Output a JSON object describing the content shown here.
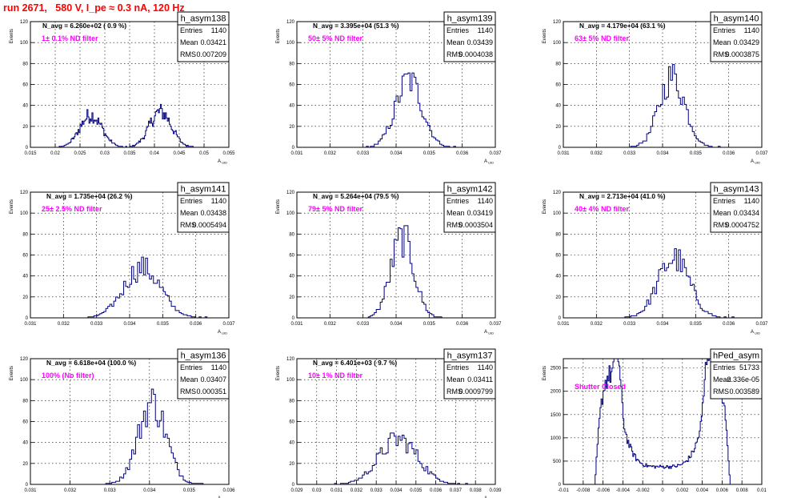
{
  "run_title": "run 2671,   580 V, I_pe ≈ 0.3 nA, 120 Hz",
  "colors": {
    "title": "#ff0000",
    "annotation": "#ff00ff",
    "histogram": "#00007f",
    "grid": "#000000"
  },
  "chart_data": [
    {
      "type": "histogram",
      "title": "h_asym138",
      "stats": {
        "entries_label": "Entries",
        "entries": "1140",
        "mean_label": "Mean",
        "mean": "0.03421",
        "rms_label": "RMS",
        "rms": "0.007209"
      },
      "navg_text": "N_avg = 6.260e+02 ( 0.9 %)",
      "filter_text": "1± 0.1% ND filter",
      "ylabel": "Events",
      "xlabel": "A_UID",
      "xlim": [
        0.015,
        0.055
      ],
      "ylim": [
        0,
        120
      ],
      "xticks": [
        "0.015",
        "0.02",
        "0.025",
        "0.03",
        "0.035",
        "0.04",
        "0.045",
        "0.05",
        "0.055"
      ],
      "yticks": [
        "0",
        "20",
        "40",
        "60",
        "80",
        "100",
        "120"
      ],
      "peaks": [
        {
          "c": 0.0272,
          "s": 0.0022,
          "a": 31
        },
        {
          "c": 0.0412,
          "s": 0.0022,
          "a": 34
        }
      ],
      "nbins": 200
    },
    {
      "type": "histogram",
      "title": "h_asym139",
      "stats": {
        "entries_label": "Entries",
        "entries": "1140",
        "mean_label": "Mean",
        "mean": "0.03439",
        "rms_label": "RMS",
        "rms": "0.0004038"
      },
      "navg_text": "N_avg = 3.395e+04 (51.3 %)",
      "filter_text": "50± 5% ND filter",
      "ylabel": "Events",
      "xlabel": "A_UID",
      "xlim": [
        0.031,
        0.037
      ],
      "ylim": [
        0,
        120
      ],
      "xticks": [
        "0.031",
        "0.032",
        "0.033",
        "0.034",
        "0.035",
        "0.036",
        "0.037"
      ],
      "yticks": [
        "0",
        "20",
        "40",
        "60",
        "80",
        "100",
        "120"
      ],
      "peaks": [
        {
          "c": 0.03439,
          "s": 0.0004,
          "a": 64
        }
      ],
      "nbins": 100
    },
    {
      "type": "histogram",
      "title": "h_asym140",
      "stats": {
        "entries_label": "Entries",
        "entries": "1140",
        "mean_label": "Mean",
        "mean": "0.03429",
        "rms_label": "RMS",
        "rms": "0.0003875"
      },
      "navg_text": "N_avg = 4.179e+04 (63.1 %)",
      "filter_text": "63± 5% ND filter",
      "ylabel": "Events",
      "xlabel": "A_UID",
      "xlim": [
        0.031,
        0.037
      ],
      "ylim": [
        0,
        120
      ],
      "xticks": [
        "0.031",
        "0.032",
        "0.033",
        "0.034",
        "0.035",
        "0.036",
        "0.037"
      ],
      "yticks": [
        "0",
        "20",
        "40",
        "60",
        "80",
        "100",
        "120"
      ],
      "peaks": [
        {
          "c": 0.03429,
          "s": 0.00039,
          "a": 67
        }
      ],
      "nbins": 100
    },
    {
      "type": "histogram",
      "title": "h_asym141",
      "stats": {
        "entries_label": "Entries",
        "entries": "1140",
        "mean_label": "Mean",
        "mean": "0.03438",
        "rms_label": "RMS",
        "rms": "0.0005494"
      },
      "navg_text": "N_avg = 1.735e+04 (26.2 %)",
      "filter_text": "25± 2.5% ND filter",
      "ylabel": "Events",
      "xlabel": "A_UID",
      "xlim": [
        0.031,
        0.037
      ],
      "ylim": [
        0,
        120
      ],
      "xticks": [
        "0.031",
        "0.032",
        "0.033",
        "0.034",
        "0.035",
        "0.036",
        "0.037"
      ],
      "yticks": [
        "0",
        "20",
        "40",
        "60",
        "80",
        "100",
        "120"
      ],
      "peaks": [
        {
          "c": 0.03438,
          "s": 0.00055,
          "a": 48
        }
      ],
      "nbins": 100
    },
    {
      "type": "histogram",
      "title": "h_asym142",
      "stats": {
        "entries_label": "Entries",
        "entries": "1140",
        "mean_label": "Mean",
        "mean": "0.03419",
        "rms_label": "RMS",
        "rms": "0.0003504"
      },
      "navg_text": "N_avg = 5.264e+04 (79.5 %)",
      "filter_text": "79± 5% ND filter",
      "ylabel": "Events",
      "xlabel": "A_UID",
      "xlim": [
        0.031,
        0.037
      ],
      "ylim": [
        0,
        120
      ],
      "xticks": [
        "0.031",
        "0.032",
        "0.033",
        "0.034",
        "0.035",
        "0.036",
        "0.037"
      ],
      "yticks": [
        "0",
        "20",
        "40",
        "60",
        "80",
        "100",
        "120"
      ],
      "peaks": [
        {
          "c": 0.03419,
          "s": 0.00035,
          "a": 76
        }
      ],
      "nbins": 100
    },
    {
      "type": "histogram",
      "title": "h_asym143",
      "stats": {
        "entries_label": "Entries",
        "entries": "1140",
        "mean_label": "Mean",
        "mean": "0.03434",
        "rms_label": "RMS",
        "rms": "0.0004752"
      },
      "navg_text": "N_avg = 2.713e+04 (41.0 %)",
      "filter_text": "40± 4% ND filter",
      "ylabel": "Events",
      "xlabel": "A_UID",
      "xlim": [
        0.031,
        0.037
      ],
      "ylim": [
        0,
        120
      ],
      "xticks": [
        "0.031",
        "0.032",
        "0.033",
        "0.034",
        "0.035",
        "0.036",
        "0.037"
      ],
      "yticks": [
        "0",
        "20",
        "40",
        "60",
        "80",
        "100",
        "120"
      ],
      "peaks": [
        {
          "c": 0.03434,
          "s": 0.00047,
          "a": 57
        }
      ],
      "nbins": 100
    },
    {
      "type": "histogram",
      "title": "h_asym136",
      "stats": {
        "entries_label": "Entries",
        "entries": "1140",
        "mean_label": "Mean",
        "mean": "0.03407",
        "rms_label": "RMS",
        "rms": "0.000351"
      },
      "navg_text": "N_avg = 6.618e+04 (100.0 %)",
      "filter_text": "100% (No filter)",
      "ylabel": "Events",
      "xlabel": "A_UID",
      "xlim": [
        0.031,
        0.036
      ],
      "ylim": [
        0,
        120
      ],
      "xticks": [
        "0.031",
        "0.032",
        "0.033",
        "0.034",
        "0.035",
        "0.036"
      ],
      "yticks": [
        "0",
        "20",
        "40",
        "60",
        "80",
        "100",
        "120"
      ],
      "peaks": [
        {
          "c": 0.03407,
          "s": 0.00035,
          "a": 78
        }
      ],
      "nbins": 100
    },
    {
      "type": "histogram",
      "title": "h_asym137",
      "stats": {
        "entries_label": "Entries",
        "entries": "1140",
        "mean_label": "Mean",
        "mean": "0.03411",
        "rms_label": "RMS",
        "rms": "0.0009799"
      },
      "navg_text": "N_avg = 6.401e+03 ( 9.7 %)",
      "filter_text": "10± 1% ND filter",
      "ylabel": "Events",
      "xlabel": "A_UID",
      "xlim": [
        0.029,
        0.039
      ],
      "ylim": [
        0,
        120
      ],
      "xticks": [
        "0.029",
        "0.03",
        "0.031",
        "0.032",
        "0.033",
        "0.034",
        "0.035",
        "0.036",
        "0.037",
        "0.038",
        "0.039"
      ],
      "yticks": [
        "0",
        "20",
        "40",
        "60",
        "80",
        "100",
        "120"
      ],
      "peaks": [
        {
          "c": 0.03411,
          "s": 0.00098,
          "a": 43
        }
      ],
      "nbins": 100
    },
    {
      "type": "histogram",
      "title": "hPed_asym",
      "stats": {
        "entries_label": "Entries",
        "entries": "51733",
        "mean_label": "Mean",
        "mean": "-2.336e-05",
        "rms_label": "RMS",
        "rms": "0.003589"
      },
      "navg_text": "",
      "filter_text": "Shutter Closed",
      "ylabel": "Events",
      "xlabel": "",
      "xlim": [
        -0.01,
        0.01
      ],
      "ylim": [
        0,
        2700
      ],
      "xticks": [
        "-0.01",
        "-0.008",
        "-0.006",
        "-0.004",
        "-0.002",
        "0",
        "0.002",
        "0.004",
        "0.006",
        "0.008",
        "0.01"
      ],
      "yticks": [
        "0",
        "500",
        "1000",
        "1500",
        "2000",
        "2500"
      ],
      "pedestal": true,
      "nbins": 200
    }
  ]
}
